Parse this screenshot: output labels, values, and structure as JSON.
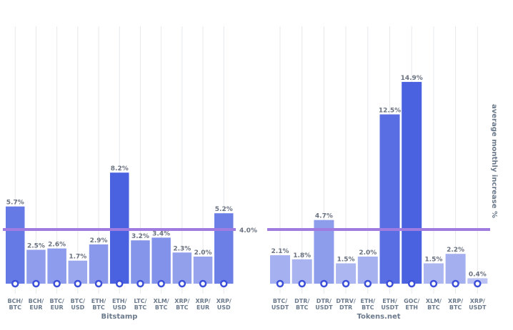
{
  "chart_data": {
    "type": "bar",
    "ylabel": "average monthly increase %",
    "ylim": [
      0,
      16
    ],
    "reference_line": {
      "value": 4.0,
      "label": "4.0%",
      "color": "#a07ce0"
    },
    "grid": "vertical",
    "panels": [
      {
        "title": "Bitstamp",
        "categories": [
          [
            "BCH/",
            "BTC"
          ],
          [
            "BCH/",
            "EUR"
          ],
          [
            "BTC/",
            "EUR"
          ],
          [
            "BTC/",
            "USD"
          ],
          [
            "ETH/",
            "BTC"
          ],
          [
            "ETH/",
            "USD"
          ],
          [
            "LTC/",
            "BTC"
          ],
          [
            "XLM/",
            "BTC"
          ],
          [
            "XRP/",
            "BTC"
          ],
          [
            "XRP/",
            "EUR"
          ],
          [
            "XRP/",
            "USD"
          ]
        ],
        "values": [
          5.7,
          2.5,
          2.6,
          1.7,
          2.9,
          8.2,
          3.2,
          3.4,
          2.3,
          2.0,
          5.2
        ],
        "value_labels": [
          "5.7%",
          "2.5%",
          "2.6%",
          "1.7%",
          "2.9%",
          "8.2%",
          "3.2%",
          "3.4%",
          "2.3%",
          "2.0%",
          "5.2%"
        ]
      },
      {
        "title": "Tokens.net",
        "categories": [
          [
            "BTC/",
            "USDT"
          ],
          [
            "DTR/",
            "BTC"
          ],
          [
            "DTR/",
            "USDT"
          ],
          [
            "DTRV/",
            "DTR"
          ],
          [
            "ETH/",
            "BTC"
          ],
          [
            "ETH/",
            "USDT"
          ],
          [
            "GOC/",
            "ETH"
          ],
          [
            "XLM/",
            "BTC"
          ],
          [
            "XRP/",
            "BTC"
          ],
          [
            "XRP/",
            "USDT"
          ]
        ],
        "values": [
          2.1,
          1.8,
          4.7,
          1.5,
          2.0,
          12.5,
          14.9,
          1.5,
          2.2,
          0.4
        ],
        "value_labels": [
          "2.1%",
          "1.8%",
          "4.7%",
          "1.5%",
          "2.0%",
          "12.5%",
          "14.9%",
          "1.5%",
          "2.2%",
          "0.4%"
        ]
      }
    ]
  }
}
